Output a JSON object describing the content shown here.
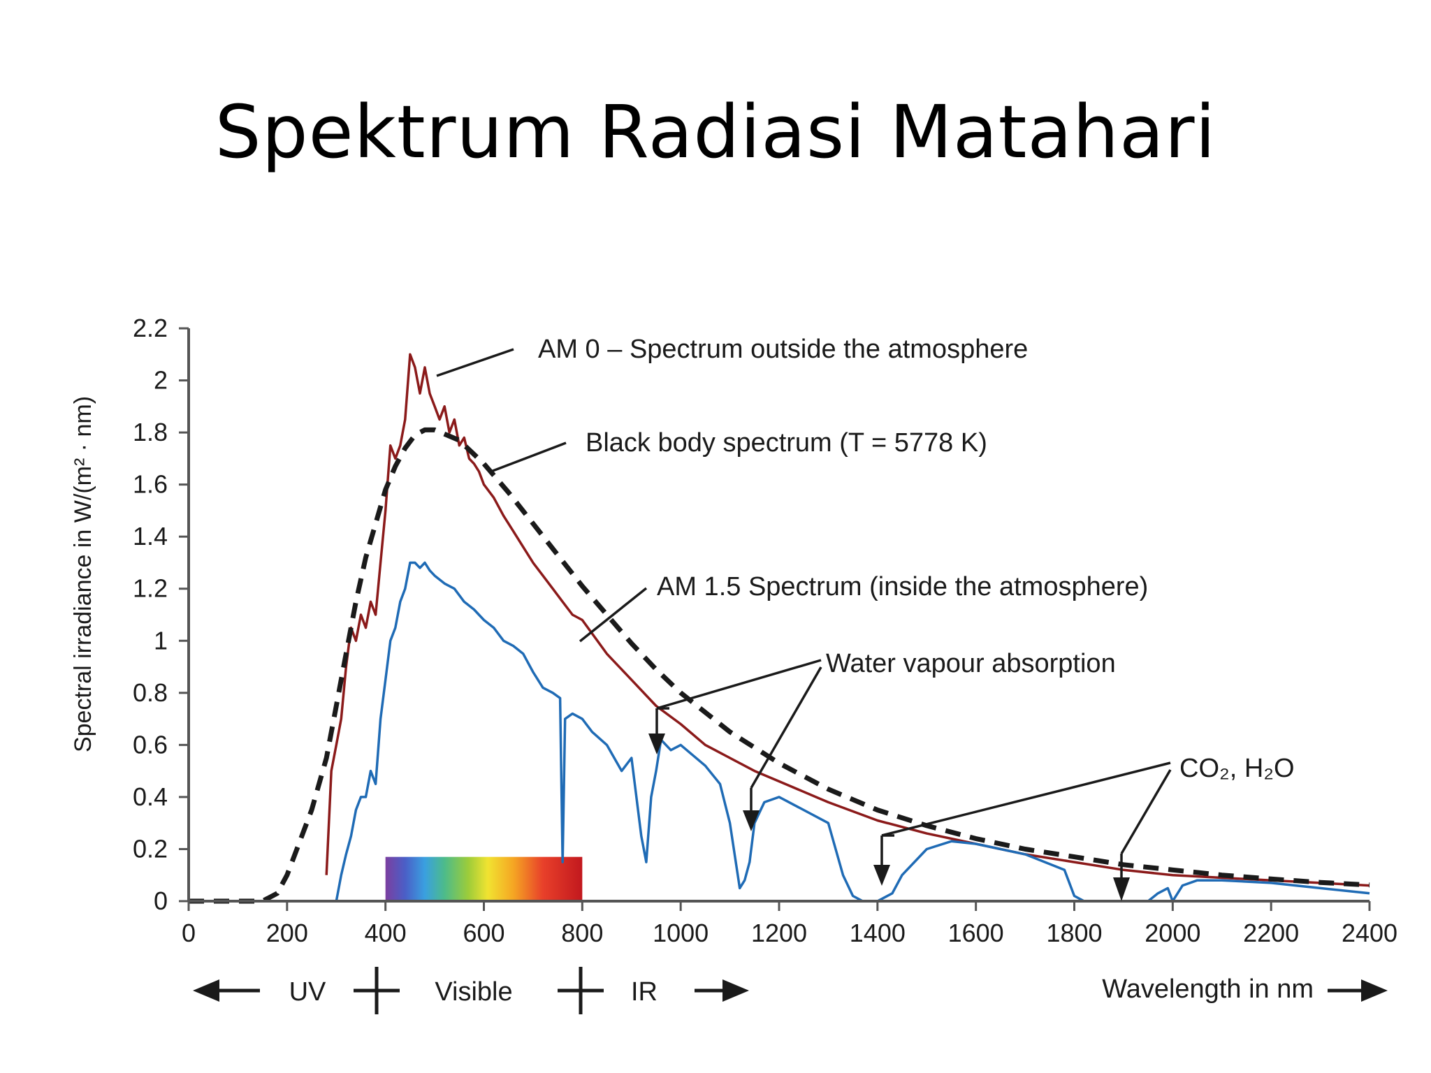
{
  "slide": {
    "title": "Spektrum Radiasi Matahari"
  },
  "chart_data": {
    "type": "line",
    "title": "",
    "xlabel": "Wavelength in nm",
    "ylabel": "Spectral irradiance in W/(m² · nm)",
    "xlim": [
      0,
      2400
    ],
    "ylim": [
      0,
      2.2
    ],
    "xticks": [
      0,
      200,
      400,
      600,
      800,
      1000,
      1200,
      1400,
      1600,
      1800,
      2000,
      2200,
      2400
    ],
    "yticks": [
      0,
      0.2,
      0.4,
      0.6,
      0.8,
      1,
      1.2,
      1.4,
      1.6,
      1.8,
      2,
      2.2
    ],
    "ytick_labels": [
      "0",
      "0.2",
      "0.4",
      "0.6",
      "0.8",
      "1",
      "1.2",
      "1.4",
      "1.6",
      "1.8",
      "2",
      "2.2"
    ],
    "grid": false,
    "series": [
      {
        "key": "am0",
        "color": "#8b1a1a",
        "style": "solid",
        "x": [
          280,
          290,
          300,
          310,
          320,
          330,
          340,
          350,
          360,
          370,
          380,
          390,
          400,
          410,
          420,
          430,
          440,
          450,
          460,
          470,
          480,
          490,
          500,
          510,
          520,
          530,
          540,
          550,
          560,
          570,
          580,
          590,
          600,
          620,
          640,
          660,
          680,
          700,
          720,
          740,
          760,
          780,
          800,
          850,
          900,
          950,
          1000,
          1050,
          1100,
          1150,
          1200,
          1300,
          1400,
          1500,
          1600,
          1700,
          1800,
          1900,
          2000,
          2100,
          2200,
          2300,
          2400
        ],
        "y": [
          0.1,
          0.5,
          0.6,
          0.7,
          0.9,
          1.05,
          1.0,
          1.1,
          1.05,
          1.15,
          1.1,
          1.3,
          1.5,
          1.75,
          1.7,
          1.75,
          1.85,
          2.1,
          2.05,
          1.95,
          2.05,
          1.95,
          1.9,
          1.85,
          1.9,
          1.8,
          1.85,
          1.75,
          1.78,
          1.7,
          1.68,
          1.65,
          1.6,
          1.55,
          1.48,
          1.42,
          1.36,
          1.3,
          1.25,
          1.2,
          1.15,
          1.1,
          1.08,
          0.95,
          0.85,
          0.75,
          0.68,
          0.6,
          0.55,
          0.5,
          0.46,
          0.38,
          0.31,
          0.26,
          0.22,
          0.18,
          0.15,
          0.12,
          0.1,
          0.09,
          0.08,
          0.07,
          0.06
        ]
      },
      {
        "key": "blackbody",
        "color": "#1a1a1a",
        "style": "dashed",
        "x": [
          0,
          150,
          180,
          200,
          220,
          250,
          280,
          300,
          320,
          340,
          360,
          380,
          400,
          420,
          440,
          460,
          480,
          500,
          550,
          600,
          650,
          700,
          750,
          800,
          850,
          900,
          950,
          1000,
          1100,
          1200,
          1300,
          1400,
          1500,
          1600,
          1700,
          1800,
          1900,
          2000,
          2100,
          2200,
          2300,
          2400
        ],
        "y": [
          0,
          0,
          0.03,
          0.1,
          0.2,
          0.35,
          0.55,
          0.75,
          0.95,
          1.15,
          1.32,
          1.45,
          1.58,
          1.67,
          1.74,
          1.79,
          1.81,
          1.81,
          1.77,
          1.68,
          1.57,
          1.45,
          1.33,
          1.21,
          1.1,
          0.99,
          0.89,
          0.8,
          0.65,
          0.53,
          0.43,
          0.35,
          0.29,
          0.24,
          0.2,
          0.17,
          0.14,
          0.12,
          0.1,
          0.085,
          0.072,
          0.062
        ]
      },
      {
        "key": "am15",
        "color": "#1f6bb5",
        "style": "solid",
        "x": [
          300,
          310,
          320,
          330,
          340,
          350,
          360,
          370,
          380,
          390,
          400,
          410,
          420,
          430,
          440,
          450,
          460,
          470,
          480,
          490,
          500,
          520,
          540,
          560,
          580,
          600,
          620,
          640,
          660,
          680,
          700,
          720,
          740,
          755,
          760,
          765,
          780,
          800,
          820,
          850,
          880,
          900,
          920,
          930,
          940,
          950,
          960,
          980,
          1000,
          1050,
          1080,
          1100,
          1120,
          1130,
          1140,
          1150,
          1170,
          1200,
          1250,
          1300,
          1330,
          1350,
          1370,
          1380,
          1400,
          1430,
          1450,
          1500,
          1550,
          1600,
          1700,
          1780,
          1800,
          1820,
          1850,
          1900,
          1950,
          1970,
          1990,
          2000,
          2020,
          2050,
          2100,
          2200,
          2300,
          2400
        ],
        "y": [
          0,
          0.1,
          0.18,
          0.25,
          0.35,
          0.4,
          0.4,
          0.5,
          0.45,
          0.7,
          0.85,
          1.0,
          1.05,
          1.15,
          1.2,
          1.3,
          1.3,
          1.28,
          1.3,
          1.27,
          1.25,
          1.22,
          1.2,
          1.15,
          1.12,
          1.08,
          1.05,
          1.0,
          0.98,
          0.95,
          0.88,
          0.82,
          0.8,
          0.78,
          0.15,
          0.7,
          0.72,
          0.7,
          0.65,
          0.6,
          0.5,
          0.55,
          0.25,
          0.15,
          0.4,
          0.5,
          0.62,
          0.58,
          0.6,
          0.52,
          0.45,
          0.3,
          0.05,
          0.08,
          0.15,
          0.3,
          0.38,
          0.4,
          0.35,
          0.3,
          0.1,
          0.02,
          0.0,
          0.0,
          0.0,
          0.03,
          0.1,
          0.2,
          0.23,
          0.22,
          0.18,
          0.12,
          0.02,
          0.0,
          0.0,
          0.0,
          0.0,
          0.03,
          0.05,
          0.0,
          0.06,
          0.08,
          0.08,
          0.07,
          0.05,
          0.03
        ]
      }
    ],
    "visible_band": {
      "x": [
        400,
        800
      ]
    },
    "annotations": [
      {
        "key": "am0",
        "text": "AM 0 – Spectrum outside the atmosphere"
      },
      {
        "key": "bb",
        "text": "Black body spectrum (T = 5778 K)"
      },
      {
        "key": "am15",
        "text": "AM 1.5 Spectrum (inside the atmosphere)"
      },
      {
        "key": "water",
        "text": "Water vapour absorption"
      },
      {
        "key": "co2",
        "text": "CO₂, H₂O"
      }
    ],
    "regions": [
      {
        "key": "uv",
        "text": "UV"
      },
      {
        "key": "visible",
        "text": "Visible"
      },
      {
        "key": "ir",
        "text": "IR"
      }
    ]
  }
}
